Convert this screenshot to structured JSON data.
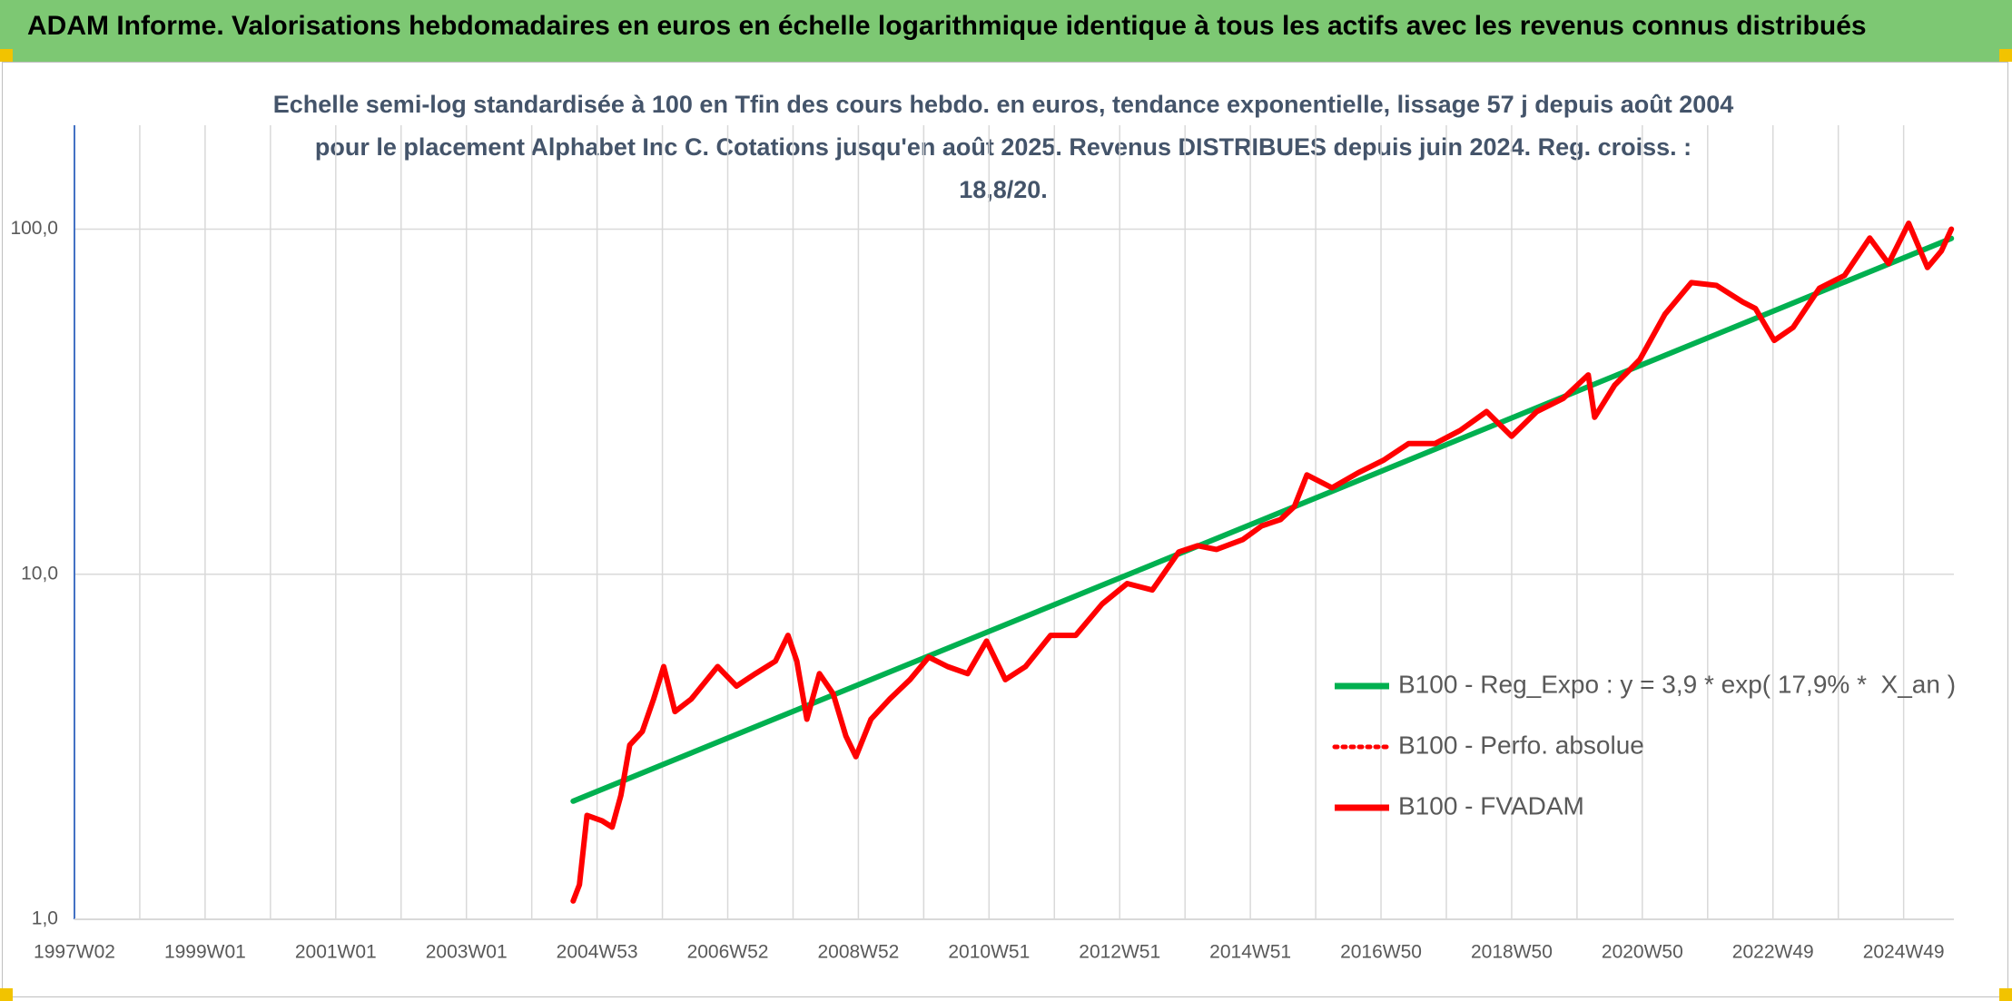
{
  "chart_data": {
    "type": "line",
    "title": "ADAM Informe. Valorisations hebdomadaires en euros en échelle logarithmique identique à tous les actifs avec les revenus connus distribués",
    "subtitle": "Echelle semi-log standardisée à 100 en Tfin des cours hebdo. en euros, tendance exponentielle, lissage 57 j depuis août 2004 pour le placement Alphabet Inc C. Cotations jusqu'en août 2025. Revenus DISTRIBUES depuis juin 2024. Reg. croiss. : 18,8/20.",
    "log_y": true,
    "grid": true,
    "legend": "right",
    "xlim": [
      0,
      1496
    ],
    "xticks": [
      {
        "value": 0,
        "label": "1997W02"
      },
      {
        "value": 104,
        "label": "1999W01"
      },
      {
        "value": 208,
        "label": "2001W01"
      },
      {
        "value": 312,
        "label": "2003W01"
      },
      {
        "value": 416,
        "label": "2004W53"
      },
      {
        "value": 520,
        "label": "2006W52"
      },
      {
        "value": 624,
        "label": "2008W52"
      },
      {
        "value": 728,
        "label": "2010W51"
      },
      {
        "value": 832,
        "label": "2012W51"
      },
      {
        "value": 936,
        "label": "2014W51"
      },
      {
        "value": 1040,
        "label": "2016W50"
      },
      {
        "value": 1144,
        "label": "2018W50"
      },
      {
        "value": 1248,
        "label": "2020W50"
      },
      {
        "value": 1352,
        "label": "2022W49"
      },
      {
        "value": 1456,
        "label": "2024W49"
      }
    ],
    "ylim": [
      1,
      200
    ],
    "yticks": [
      {
        "value": 1,
        "label": "1,0"
      },
      {
        "value": 10,
        "label": "10,0"
      },
      {
        "value": 100,
        "label": "100,0"
      }
    ],
    "series": [
      {
        "name": "B100 - Reg_Expo : y = 3,9 * exp( 17,9% *  X_an )",
        "color": "#00b050",
        "style": "solid",
        "x": [
          397,
          1494
        ],
        "values": [
          2.2,
          94
        ]
      },
      {
        "name": "B100 - Perfo. absolue",
        "color": "#ff0000",
        "style": "dotted",
        "x": [
          397,
          402,
          408,
          420,
          428,
          435,
          442,
          452,
          461,
          469,
          478,
          491,
          512,
          527,
          542,
          558,
          568,
          575,
          583,
          593,
          604,
          614,
          622,
          634,
          649,
          665,
          680,
          695,
          711,
          726,
          741,
          757,
          777,
          797,
          818,
          838,
          858,
          879,
          894,
          909,
          930,
          945,
          960,
          971,
          981,
          1001,
          1022,
          1042,
          1062,
          1083,
          1103,
          1124,
          1144,
          1164,
          1185,
          1205,
          1210,
          1226,
          1246,
          1266,
          1287,
          1307,
          1328,
          1338,
          1353,
          1368,
          1389,
          1409,
          1429,
          1444,
          1460,
          1475,
          1486,
          1494
        ],
        "values": [
          1.13,
          1.26,
          2.0,
          1.93,
          1.85,
          2.29,
          3.2,
          3.5,
          4.35,
          5.4,
          4.0,
          4.35,
          5.4,
          4.74,
          5.15,
          5.6,
          6.65,
          5.6,
          3.8,
          5.15,
          4.5,
          3.4,
          2.96,
          3.8,
          4.35,
          4.95,
          5.75,
          5.4,
          5.15,
          6.4,
          4.95,
          5.4,
          6.65,
          6.65,
          8.2,
          9.4,
          9.0,
          11.6,
          12.1,
          11.8,
          12.6,
          13.8,
          14.4,
          15.7,
          19.4,
          17.8,
          19.7,
          21.4,
          23.9,
          23.9,
          26.1,
          29.6,
          25.1,
          29.6,
          32.3,
          37.8,
          28.5,
          35.3,
          41.9,
          56.7,
          70,
          68.7,
          61.5,
          58.9,
          47.6,
          51.9,
          67.4,
          73.4,
          94.2,
          79.5,
          104,
          77.4,
          86.4,
          100
        ]
      },
      {
        "name": "B100 - FVADAM",
        "color": "#ff0000",
        "style": "solid",
        "x": [
          397,
          402,
          408,
          420,
          428,
          435,
          442,
          452,
          461,
          469,
          478,
          491,
          512,
          527,
          542,
          558,
          568,
          575,
          583,
          593,
          604,
          614,
          622,
          634,
          649,
          665,
          680,
          695,
          711,
          726,
          741,
          757,
          777,
          797,
          818,
          838,
          858,
          879,
          894,
          909,
          930,
          945,
          960,
          971,
          981,
          1001,
          1022,
          1042,
          1062,
          1083,
          1103,
          1124,
          1144,
          1164,
          1185,
          1205,
          1210,
          1226,
          1246,
          1266,
          1287,
          1307,
          1328,
          1338,
          1353,
          1368,
          1389,
          1409,
          1429,
          1444,
          1460,
          1475,
          1486,
          1494
        ],
        "values": [
          1.13,
          1.26,
          2.0,
          1.93,
          1.85,
          2.29,
          3.2,
          3.5,
          4.35,
          5.4,
          4.0,
          4.35,
          5.4,
          4.74,
          5.15,
          5.6,
          6.65,
          5.6,
          3.8,
          5.15,
          4.5,
          3.4,
          2.96,
          3.8,
          4.35,
          4.95,
          5.75,
          5.4,
          5.15,
          6.4,
          4.95,
          5.4,
          6.65,
          6.65,
          8.2,
          9.4,
          9.0,
          11.6,
          12.1,
          11.8,
          12.6,
          13.8,
          14.4,
          15.7,
          19.4,
          17.8,
          19.7,
          21.4,
          23.9,
          23.9,
          26.1,
          29.6,
          25.1,
          29.6,
          32.3,
          37.8,
          28.5,
          35.3,
          41.9,
          56.7,
          70,
          68.7,
          61.5,
          58.9,
          47.6,
          51.9,
          67.4,
          73.4,
          94.2,
          79.5,
          104,
          77.4,
          86.4,
          100
        ]
      }
    ]
  }
}
